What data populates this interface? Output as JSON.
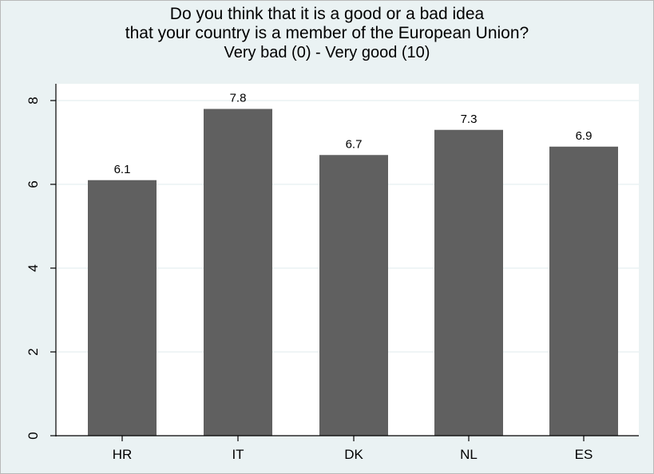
{
  "chart_data": {
    "type": "bar",
    "title": "Do you think that it is a good or a bad idea",
    "title_line2": "that your country is a member of the European Union?",
    "subtitle": "Very bad (0) - Very good (10)",
    "categories": [
      "HR",
      "IT",
      "DK",
      "NL",
      "ES"
    ],
    "values": [
      6.1,
      7.8,
      6.7,
      7.3,
      6.9
    ],
    "data_labels": [
      "6.1",
      "7.8",
      "6.7",
      "7.3",
      "6.9"
    ],
    "ylim": [
      0,
      8
    ],
    "yticks": [
      0,
      2,
      4,
      6,
      8
    ],
    "ytick_labels": [
      "0",
      "2",
      "4",
      "6",
      "8"
    ],
    "xlabel": "",
    "ylabel": "",
    "grid": true,
    "colors": {
      "bar": "#606060",
      "plot_background": "#ffffff",
      "outer_background": "#eaf2f3",
      "grid": "#eaf2f3"
    }
  }
}
